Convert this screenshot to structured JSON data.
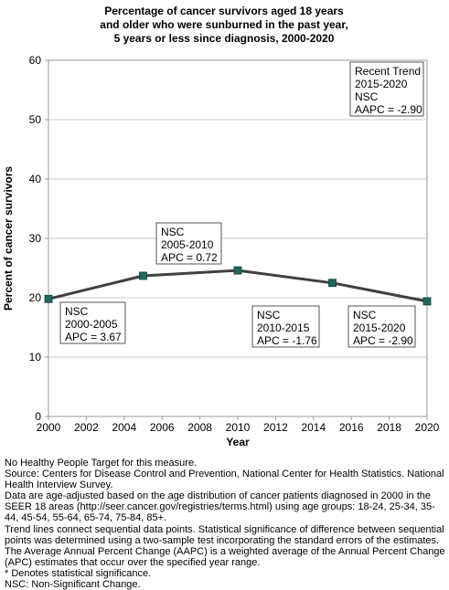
{
  "chart_data": {
    "type": "line",
    "title_lines": [
      "Percentage of cancer survivors aged 18 years",
      "and older who were sunburned in the past year,",
      "5 years or less since diagnosis,  2000-2020"
    ],
    "xlabel": "Year",
    "ylabel": "Percent of cancer survivors",
    "xlim": [
      2000,
      2020
    ],
    "ylim": [
      0,
      60
    ],
    "x_ticks": [
      "2000",
      "2002",
      "2004",
      "2006",
      "2008",
      "2010",
      "2012",
      "2014",
      "2016",
      "2018",
      "2020"
    ],
    "y_ticks": [
      "0",
      "10",
      "20",
      "30",
      "40",
      "50",
      "60"
    ],
    "grid": "horizontal",
    "series": [
      {
        "x": [
          2000,
          2005,
          2010,
          2015,
          2020
        ],
        "values": [
          19.8,
          23.7,
          24.6,
          22.5,
          19.4
        ],
        "color": "#404040",
        "marker_color": "#1e6b5c"
      }
    ],
    "annotations": [
      {
        "lines": [
          "NSC",
          "2000-2005",
          "APC =  3.67"
        ]
      },
      {
        "lines": [
          "NSC",
          "2005-2010",
          "APC =  0.72"
        ]
      },
      {
        "lines": [
          "NSC",
          "2010-2015",
          "APC = -1.76"
        ]
      },
      {
        "lines": [
          "NSC",
          "2015-2020",
          "APC = -2.90"
        ]
      },
      {
        "lines": [
          "Recent Trend",
          "2015-2020",
          "NSC",
          "AAPC = -2.90"
        ]
      }
    ]
  },
  "footnotes": [
    "No Healthy People Target for this measure.",
    "Source: Centers for Disease Control and Prevention, National Center for Health Statistics. National Health Interview Survey.",
    "Data are age-adjusted based on the age distribution of cancer patients diagnosed in 2000 in the SEER 18 areas (http://seer.cancer.gov/registries/terms.html) using age groups: 18-24, 25-34, 35-44, 45-54, 55-64, 65-74, 75-84, 85+.",
    "Trend lines connect sequential data points. Statistical significance of difference between sequential points was determined using a two-sample test incorporating the standard errors of the estimates.",
    "The Average Annual Percent Change (AAPC) is a weighted average of the Annual Percent Change (APC) estimates that occur over the specified year range.",
    "* Denotes statistical significance.",
    "NSC: Non-Significant Change."
  ]
}
